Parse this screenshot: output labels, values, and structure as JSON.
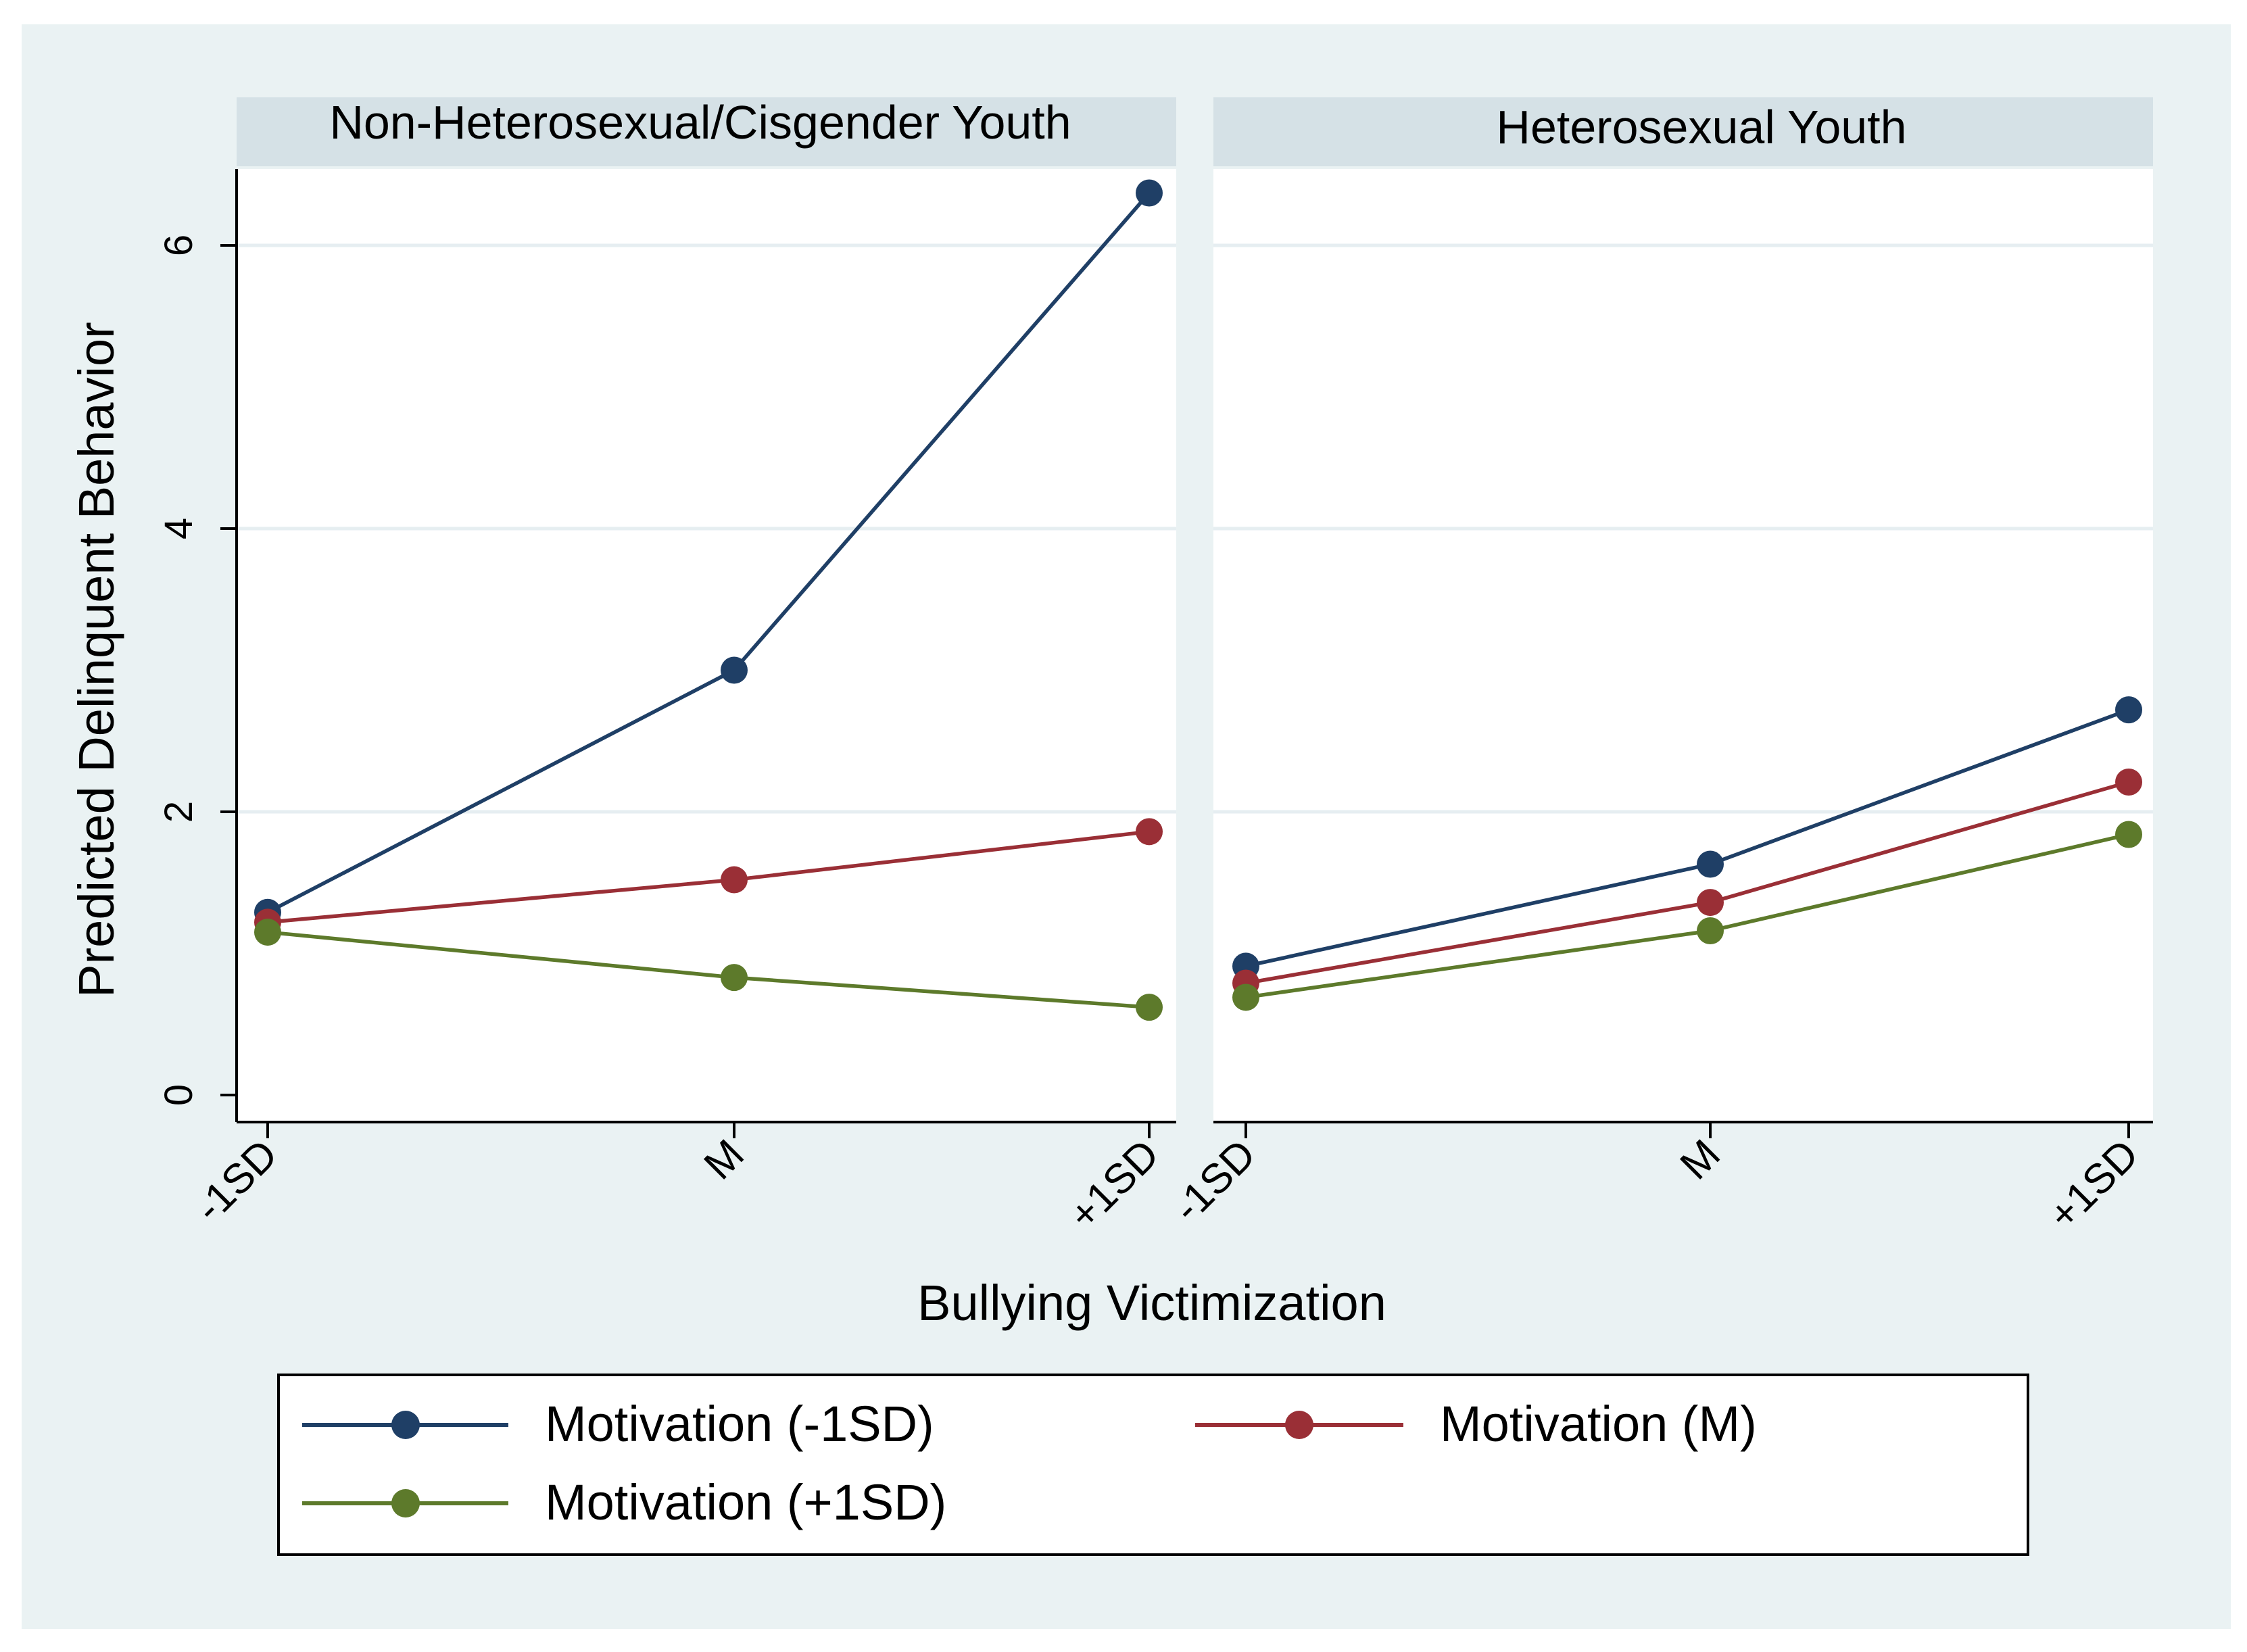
{
  "chart_data": {
    "type": "line",
    "layout": "two-panel",
    "xlabel": "Bullying Victimization",
    "ylabel": "Predicted Delinquent Behavior",
    "categories": [
      "-1SD",
      "M",
      "+1SD"
    ],
    "ylim": [
      0,
      6.5
    ],
    "yticks": [
      0,
      2,
      4,
      6
    ],
    "grid": true,
    "legend_position": "bottom",
    "series_colors": {
      "Motivation (-1SD)": "#1f3f66",
      "Motivation (M)": "#9a2f36",
      "Motivation (+1SD)": "#5d7a2b"
    },
    "panels": [
      {
        "title": "Non-Heterosexual/Cisgender Youth",
        "series": [
          {
            "name": "Motivation (-1SD)",
            "values": [
              1.29,
              3.0,
              6.37
            ]
          },
          {
            "name": "Motivation (M)",
            "values": [
              1.22,
              1.52,
              1.86
            ]
          },
          {
            "name": "Motivation (+1SD)",
            "values": [
              1.15,
              0.83,
              0.62
            ]
          }
        ]
      },
      {
        "title": "Heterosexual Youth",
        "series": [
          {
            "name": "Motivation (-1SD)",
            "values": [
              0.91,
              1.63,
              2.72
            ]
          },
          {
            "name": "Motivation (M)",
            "values": [
              0.79,
              1.36,
              2.21
            ]
          },
          {
            "name": "Motivation (+1SD)",
            "values": [
              0.69,
              1.16,
              1.84
            ]
          }
        ]
      }
    ],
    "legend": [
      "Motivation (-1SD)",
      "Motivation (M)",
      "Motivation (+1SD)"
    ]
  }
}
